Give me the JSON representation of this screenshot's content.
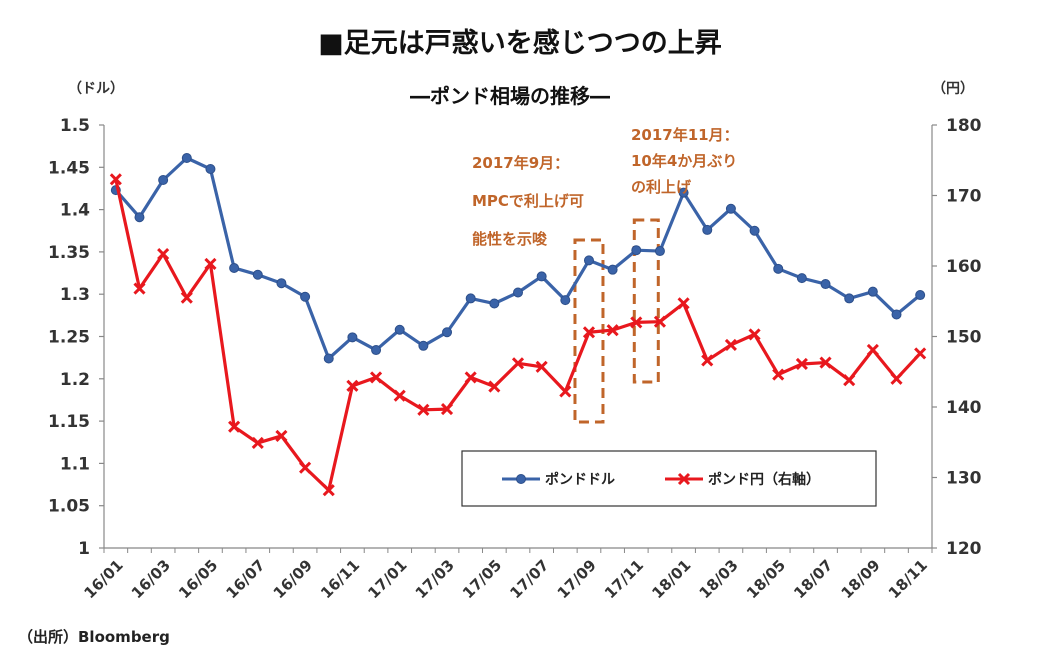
{
  "chart_data": {
    "type": "line",
    "title": "■足元は戸惑いを感じつつの上昇",
    "subtitle": "―ポンド相場の推移―",
    "y_left_unit": "（ドル）",
    "y_right_unit": "（円）",
    "y_left_ticks": [
      "1.5",
      "1.45",
      "1.4",
      "1.35",
      "1.3",
      "1.25",
      "1.2",
      "1.15",
      "1.1",
      "1.05",
      "1"
    ],
    "y_right_ticks": [
      "180",
      "170",
      "160",
      "150",
      "140",
      "130",
      "120"
    ],
    "ylim_left": [
      1.0,
      1.5
    ],
    "ylim_right": [
      120,
      180
    ],
    "x_tick_labels": [
      "16/01",
      "16/03",
      "16/05",
      "16/07",
      "16/09",
      "16/11",
      "17/01",
      "17/03",
      "17/05",
      "17/07",
      "17/09",
      "17/11",
      "18/01",
      "18/03",
      "18/05",
      "18/07",
      "18/09",
      "18/11"
    ],
    "months": [
      "16/01",
      "16/02",
      "16/03",
      "16/04",
      "16/05",
      "16/06",
      "16/07",
      "16/08",
      "16/09",
      "16/10",
      "16/11",
      "16/12",
      "17/01",
      "17/02",
      "17/03",
      "17/04",
      "17/05",
      "17/06",
      "17/07",
      "17/08",
      "17/09",
      "17/10",
      "17/11",
      "17/12",
      "18/01",
      "18/02",
      "18/03",
      "18/04",
      "18/05",
      "18/06",
      "18/07",
      "18/08",
      "18/09",
      "18/10",
      "18/11"
    ],
    "series": [
      {
        "name": "ポンドドル",
        "axis": "left",
        "color": "#3a63a8",
        "marker": "circle",
        "values": [
          1.423,
          1.391,
          1.435,
          1.461,
          1.448,
          1.331,
          1.323,
          1.313,
          1.297,
          1.224,
          1.249,
          1.234,
          1.258,
          1.239,
          1.255,
          1.295,
          1.289,
          1.302,
          1.321,
          1.293,
          1.34,
          1.329,
          1.352,
          1.351,
          1.42,
          1.376,
          1.401,
          1.375,
          1.33,
          1.319,
          1.312,
          1.295,
          1.303,
          1.276,
          1.299
        ]
      },
      {
        "name": "ポンド円（右軸）",
        "axis": "right",
        "color": "#e8181e",
        "marker": "x",
        "values": [
          172.3,
          156.8,
          161.7,
          155.5,
          160.3,
          137.2,
          134.9,
          135.9,
          131.4,
          128.2,
          143.0,
          144.2,
          141.6,
          139.6,
          139.7,
          144.2,
          142.9,
          146.2,
          145.7,
          142.2,
          150.6,
          150.9,
          152.0,
          152.1,
          154.7,
          146.6,
          148.8,
          150.3,
          144.6,
          146.1,
          146.3,
          143.8,
          148.1,
          144.0,
          147.6
        ]
      }
    ],
    "annotations": [
      {
        "lines": [
          "2017年9月：",
          "MPCで利上げ可",
          "能性を示唆"
        ],
        "month": "17/09"
      },
      {
        "lines": [
          "2017年11月：",
          "10年4か月ぶり",
          "の利上げ"
        ],
        "month": "17/11"
      }
    ],
    "legend": {
      "placement": "bottom-right"
    },
    "grid": false,
    "colors": {
      "highlight_box": "#c0652a"
    }
  },
  "source": "（出所）Bloomberg"
}
